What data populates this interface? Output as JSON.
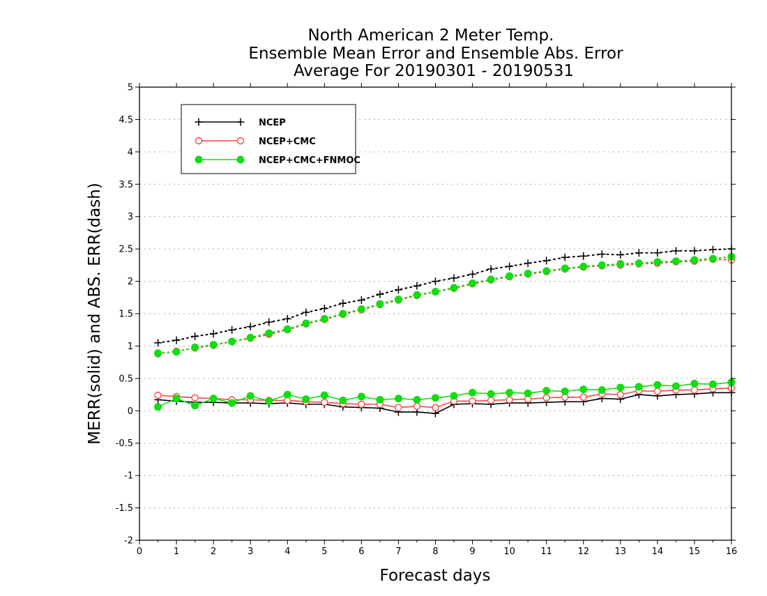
{
  "chart_data": {
    "type": "line",
    "title": [
      "North American 2 Meter Temp.",
      "Ensemble Mean Error and Ensemble Abs. Error",
      "Average For 20190301 - 20190531"
    ],
    "xlabel": "Forecast days",
    "ylabel": "MERR(solid) and ABS. ERR(dash)",
    "xlim": [
      0,
      16
    ],
    "ylim": [
      -2,
      5
    ],
    "xticks": [
      "0",
      "1",
      "2",
      "3",
      "4",
      "5",
      "6",
      "7",
      "8",
      "9",
      "10",
      "11",
      "12",
      "13",
      "14",
      "15",
      "16"
    ],
    "yticks": [
      "-2",
      "-1.5",
      "-1",
      "-0.5",
      "0",
      "0.5",
      "1",
      "1.5",
      "2",
      "2.5",
      "3",
      "3.5",
      "4",
      "4.5",
      "5"
    ],
    "grid": true,
    "legend_position": "top-left",
    "x": [
      0.5,
      1,
      1.5,
      2,
      2.5,
      3,
      3.5,
      4,
      4.5,
      5,
      5.5,
      6,
      6.5,
      7,
      7.5,
      8,
      8.5,
      9,
      9.5,
      10,
      10.5,
      11,
      11.5,
      12,
      12.5,
      13,
      13.5,
      14,
      14.5,
      15,
      15.5,
      16
    ],
    "series": [
      {
        "name": "NCEP",
        "color": "#000000",
        "marker": "plus",
        "merr": [
          0.17,
          0.15,
          0.13,
          0.13,
          0.12,
          0.12,
          0.11,
          0.12,
          0.1,
          0.1,
          0.06,
          0.05,
          0.04,
          -0.02,
          -0.02,
          -0.04,
          0.1,
          0.11,
          0.1,
          0.12,
          0.12,
          0.13,
          0.14,
          0.14,
          0.19,
          0.18,
          0.25,
          0.23,
          0.25,
          0.26,
          0.28,
          0.28
        ],
        "abs_err": [
          1.05,
          1.09,
          1.15,
          1.19,
          1.25,
          1.3,
          1.37,
          1.42,
          1.52,
          1.58,
          1.66,
          1.71,
          1.8,
          1.87,
          1.93,
          2.0,
          2.05,
          2.11,
          2.19,
          2.23,
          2.28,
          2.32,
          2.37,
          2.39,
          2.42,
          2.41,
          2.44,
          2.44,
          2.47,
          2.47,
          2.49,
          2.5
        ]
      },
      {
        "name": "NCEP+CMC",
        "color": "#ff4444",
        "marker": "open-circle",
        "merr": [
          0.24,
          0.22,
          0.2,
          0.19,
          0.17,
          0.17,
          0.16,
          0.16,
          0.14,
          0.13,
          0.11,
          0.1,
          0.1,
          0.05,
          0.07,
          0.05,
          0.15,
          0.15,
          0.16,
          0.17,
          0.18,
          0.2,
          0.21,
          0.21,
          0.26,
          0.25,
          0.31,
          0.3,
          0.32,
          0.32,
          0.34,
          0.35
        ],
        "abs_err": [
          0.88,
          0.92,
          0.97,
          1.01,
          1.07,
          1.12,
          1.18,
          1.25,
          1.34,
          1.41,
          1.49,
          1.56,
          1.64,
          1.71,
          1.78,
          1.84,
          1.89,
          1.96,
          2.02,
          2.07,
          2.11,
          2.15,
          2.19,
          2.22,
          2.24,
          2.25,
          2.27,
          2.28,
          2.3,
          2.31,
          2.34,
          2.33
        ]
      },
      {
        "name": "NCEP+CMC+FNMOC",
        "color": "#11dd11",
        "marker": "filled-circle",
        "merr": [
          0.06,
          0.19,
          0.08,
          0.19,
          0.12,
          0.23,
          0.15,
          0.25,
          0.18,
          0.24,
          0.16,
          0.22,
          0.17,
          0.19,
          0.17,
          0.2,
          0.23,
          0.28,
          0.26,
          0.28,
          0.27,
          0.31,
          0.3,
          0.33,
          0.32,
          0.36,
          0.37,
          0.4,
          0.38,
          0.42,
          0.41,
          0.44
        ],
        "abs_err": [
          0.89,
          0.91,
          0.98,
          1.02,
          1.07,
          1.13,
          1.2,
          1.26,
          1.35,
          1.42,
          1.5,
          1.57,
          1.65,
          1.72,
          1.79,
          1.84,
          1.9,
          1.97,
          2.03,
          2.08,
          2.12,
          2.16,
          2.2,
          2.23,
          2.25,
          2.27,
          2.28,
          2.3,
          2.31,
          2.33,
          2.35,
          2.38
        ]
      }
    ]
  }
}
